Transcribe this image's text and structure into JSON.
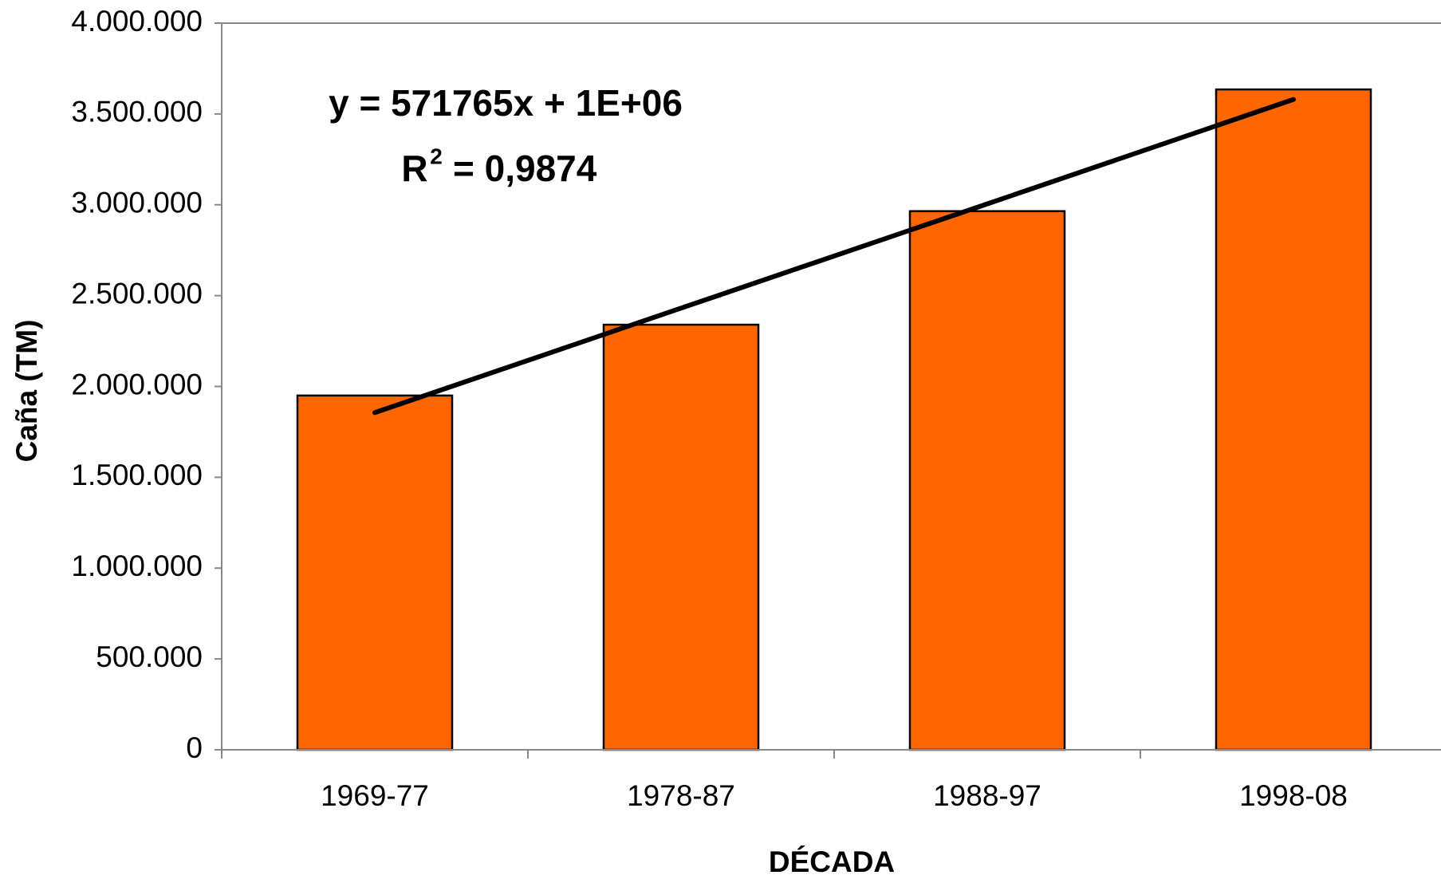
{
  "chart_data": {
    "type": "bar",
    "x_label": "DÉCADA",
    "y_label": "Caña (TM)",
    "categories": [
      "1969-77",
      "1978-87",
      "1988-97",
      "1998-08"
    ],
    "values": [
      1950000,
      2340000,
      2965000,
      3635000
    ],
    "color": "#ff6600",
    "ylim": [
      0,
      4000000
    ],
    "yticks": [
      0,
      {
        "value": 500000,
        "label": "500.000"
      },
      {
        "value": 1000000,
        "label": "1.000.000"
      },
      {
        "value": 1500000,
        "label": "1.500.000"
      },
      {
        "value": 2000000,
        "label": "2.000.000"
      },
      {
        "value": 2500000,
        "label": "2.500.000"
      },
      {
        "value": 3000000,
        "label": "3.000.000"
      },
      {
        "value": 3500000,
        "label": "3.500.000"
      },
      {
        "value": 4000000,
        "label": "4.000.000"
      }
    ],
    "trendline": {
      "values": [
        1856000,
        2431000,
        3005000,
        3580000
      ],
      "color": "#000000",
      "equation": "y = 571765x + 1E+06",
      "r2_symbol": "R",
      "r2_exponent": "2",
      "r2_value": "= 0,9874"
    }
  }
}
